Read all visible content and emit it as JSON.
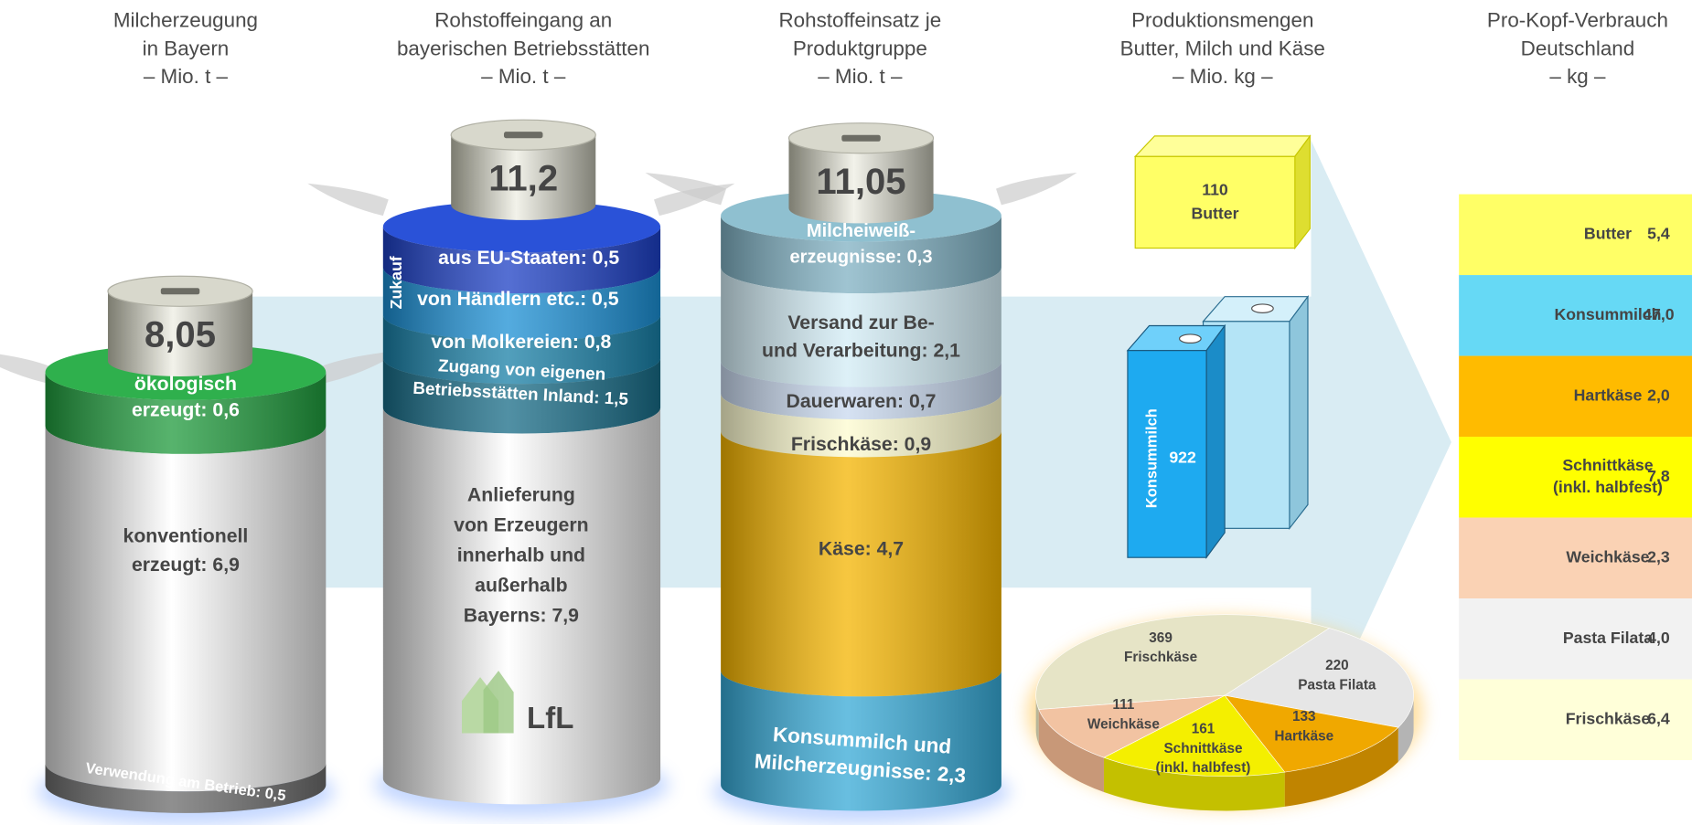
{
  "panels": [
    {
      "title": [
        "Milcherzeugung",
        "in Bayern",
        "– Mio. t –"
      ],
      "total": "8,05",
      "segments": [
        {
          "lines": [
            "ökologisch",
            "erzeugt: 0,6"
          ]
        },
        {
          "lines": [
            "konventionell",
            "erzeugt: 6,9"
          ]
        },
        {
          "lines": [
            "Verwendung am Betrieb: 0,5"
          ]
        }
      ]
    },
    {
      "title": [
        "Rohstoffeingang an",
        "bayerischen Betriebsstätten",
        "– Mio. t –"
      ],
      "total": "11,2",
      "side_label": "Zukauf",
      "segments": [
        {
          "lines": [
            "aus EU-Staaten: 0,5"
          ]
        },
        {
          "lines": [
            "von Händlern etc.: 0,5"
          ]
        },
        {
          "lines": [
            "von Molkereien: 0,8"
          ]
        },
        {
          "lines": [
            "Zugang von eigenen",
            "Betriebsstätten Inland: 1,5"
          ]
        },
        {
          "lines": [
            "Anlieferung",
            "von Erzeugern",
            "innerhalb und",
            "außerhalb",
            "Bayerns: 7,9"
          ]
        }
      ],
      "logo": "LfL"
    },
    {
      "title": [
        "Rohstoffeinsatz je",
        "Produktgruppe",
        "– Mio. t –"
      ],
      "total": "11,05",
      "segments": [
        {
          "lines": [
            "Milcheiweiß-",
            "erzeugnisse: 0,3"
          ]
        },
        {
          "lines": [
            "Versand zur Be-",
            "und Verarbeitung: 2,1"
          ]
        },
        {
          "lines": [
            "Dauerwaren: 0,7"
          ]
        },
        {
          "lines": [
            "Frischkäse: 0,9"
          ]
        },
        {
          "lines": [
            "Käse: 4,7"
          ]
        },
        {
          "lines": [
            "Konsummilch und",
            "Milcherzeugnisse: 2,3"
          ]
        }
      ]
    },
    {
      "title": [
        "Produktionsmengen",
        "Butter, Milch und Käse",
        "– Mio. kg –"
      ],
      "butter": [
        "110",
        "Butter"
      ],
      "milk": {
        "name": "Konsummilch",
        "value": "922"
      },
      "pie": {
        "slices": [
          {
            "value": 369,
            "label": "Frischkäse"
          },
          {
            "value": 220,
            "label": "Pasta Filata"
          },
          {
            "value": 133,
            "label": "Hartkäse"
          },
          {
            "value": 161,
            "label": "Schnittkäse",
            "sublabel": "(inkl. halbfest)"
          },
          {
            "value": 111,
            "label": "Weichkäse"
          }
        ]
      }
    },
    {
      "title": [
        "Pro-Kopf-Verbrauch",
        "Deutschland",
        "– kg –"
      ],
      "rows": [
        {
          "lines": [
            "Butter"
          ],
          "value": "5,4"
        },
        {
          "lines": [
            "Konsummilch"
          ],
          "value": "47,0"
        },
        {
          "lines": [
            "Hartkäse"
          ],
          "value": "2,0"
        },
        {
          "lines": [
            "Schnittkäse",
            "(inkl. halbfest)"
          ],
          "value": "7,8"
        },
        {
          "lines": [
            "Weichkäse"
          ],
          "value": "2,3"
        },
        {
          "lines": [
            "Pasta Filata"
          ],
          "value": "4,0"
        },
        {
          "lines": [
            "Frischkäse"
          ],
          "value": "6,4"
        }
      ]
    }
  ]
}
